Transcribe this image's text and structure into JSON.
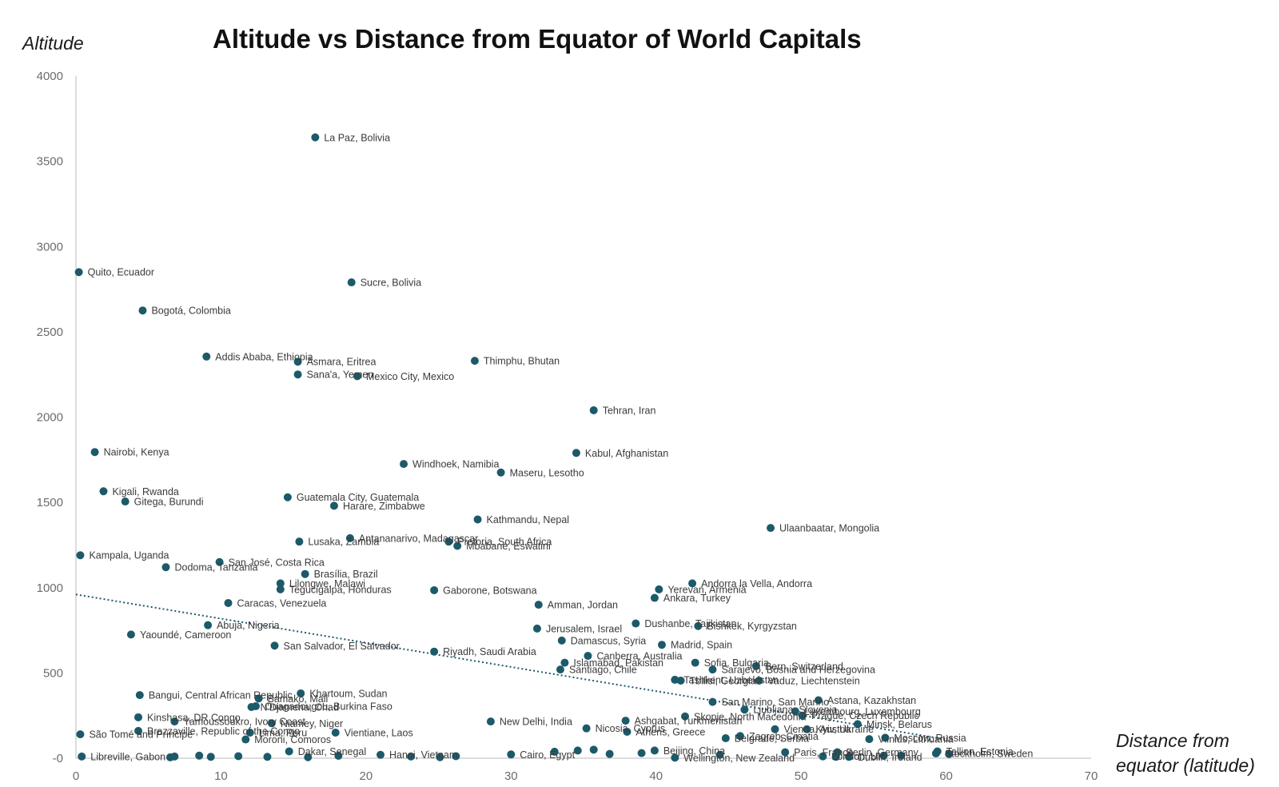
{
  "chart_data": {
    "type": "scatter",
    "title": "Altitude vs Distance from Equator of World Capitals",
    "ylabel": "Altitude",
    "xlabel_lines": [
      "Distance from",
      "equator (latitude)"
    ],
    "xlim": [
      0,
      70
    ],
    "ylim": [
      0,
      4000
    ],
    "x_ticks": [
      "0",
      "10",
      "20",
      "30",
      "40",
      "50",
      "60",
      "70"
    ],
    "y_ticks": [
      "-0",
      "500",
      "1000",
      "1500",
      "2000",
      "2500",
      "3000",
      "3500",
      "4000"
    ],
    "grid": false,
    "legend": "none",
    "marker_color": "#1c5a6a",
    "trendline": {
      "style": "dotted",
      "x": [
        0,
        60
      ],
      "y": [
        960,
        110
      ]
    },
    "points": [
      {
        "x": 16.5,
        "y": 3640,
        "label": "La Paz, Bolivia"
      },
      {
        "x": 0.2,
        "y": 2850,
        "label": "Quito, Ecuador"
      },
      {
        "x": 19.0,
        "y": 2790,
        "label": "Sucre, Bolivia"
      },
      {
        "x": 4.6,
        "y": 2625,
        "label": "Bogotá, Colombia"
      },
      {
        "x": 9.0,
        "y": 2355,
        "label": "Addis Ababa, Ethiopia"
      },
      {
        "x": 15.3,
        "y": 2325,
        "label": "Asmara, Eritrea"
      },
      {
        "x": 27.5,
        "y": 2330,
        "label": "Thimphu, Bhutan"
      },
      {
        "x": 15.3,
        "y": 2250,
        "label": "Sana'a, Yemen"
      },
      {
        "x": 19.4,
        "y": 2240,
        "label": "Mexico City, Mexico"
      },
      {
        "x": 35.7,
        "y": 2040,
        "label": "Tehran, Iran"
      },
      {
        "x": 1.3,
        "y": 1795,
        "label": "Nairobi, Kenya"
      },
      {
        "x": 34.5,
        "y": 1790,
        "label": "Kabul, Afghanistan"
      },
      {
        "x": 22.6,
        "y": 1725,
        "label": "Windhoek, Namibia"
      },
      {
        "x": 29.3,
        "y": 1675,
        "label": "Maseru, Lesotho"
      },
      {
        "x": 1.9,
        "y": 1565,
        "label": "Kigali, Rwanda"
      },
      {
        "x": 14.6,
        "y": 1530,
        "label": "Guatemala City, Guatemala"
      },
      {
        "x": 3.4,
        "y": 1505,
        "label": "Gitega, Burundi"
      },
      {
        "x": 17.8,
        "y": 1480,
        "label": "Harare, Zimbabwe"
      },
      {
        "x": 27.7,
        "y": 1400,
        "label": "Kathmandu, Nepal"
      },
      {
        "x": 47.9,
        "y": 1350,
        "label": "Ulaanbaatar, Mongolia"
      },
      {
        "x": 18.9,
        "y": 1290,
        "label": "Antananarivo, Madagascar"
      },
      {
        "x": 15.4,
        "y": 1270,
        "label": "Lusaka, Zambia"
      },
      {
        "x": 25.7,
        "y": 1270,
        "label": "Pretoria, South Africa"
      },
      {
        "x": 26.3,
        "y": 1245,
        "label": "Mbabane, Eswatini"
      },
      {
        "x": 0.3,
        "y": 1190,
        "label": "Kampala, Uganda"
      },
      {
        "x": 9.9,
        "y": 1150,
        "label": "San José, Costa Rica"
      },
      {
        "x": 6.2,
        "y": 1120,
        "label": "Dodoma, Tanzania"
      },
      {
        "x": 15.8,
        "y": 1080,
        "label": "Brasília, Brazil"
      },
      {
        "x": 42.5,
        "y": 1025,
        "label": "Andorra la Vella, Andorra"
      },
      {
        "x": 14.1,
        "y": 1025,
        "label": "Lilongwe, Malawi"
      },
      {
        "x": 40.2,
        "y": 990,
        "label": "Yerevan, Armenia"
      },
      {
        "x": 14.1,
        "y": 990,
        "label": "Tegucigalpa, Honduras"
      },
      {
        "x": 24.7,
        "y": 985,
        "label": "Gaborone, Botswana"
      },
      {
        "x": 39.9,
        "y": 940,
        "label": "Ankara, Turkey"
      },
      {
        "x": 10.5,
        "y": 910,
        "label": "Caracas, Venezuela"
      },
      {
        "x": 31.9,
        "y": 900,
        "label": "Amman, Jordan"
      },
      {
        "x": 38.6,
        "y": 790,
        "label": "Dushanbe, Tajikistan"
      },
      {
        "x": 9.1,
        "y": 780,
        "label": "Abuja, Nigeria"
      },
      {
        "x": 42.9,
        "y": 775,
        "label": "Bishkek, Kyrgyzstan"
      },
      {
        "x": 31.8,
        "y": 760,
        "label": "Jerusalem, Israel"
      },
      {
        "x": 3.8,
        "y": 725,
        "label": "Yaoundé, Cameroon"
      },
      {
        "x": 33.5,
        "y": 690,
        "label": "Damascus, Syria"
      },
      {
        "x": 40.4,
        "y": 665,
        "label": "Madrid, Spain"
      },
      {
        "x": 13.7,
        "y": 660,
        "label": "San Salvador, El Salvador"
      },
      {
        "x": 24.7,
        "y": 625,
        "label": "Riyadh, Saudi Arabia"
      },
      {
        "x": 35.3,
        "y": 600,
        "label": "Canberra, Australia"
      },
      {
        "x": 42.7,
        "y": 560,
        "label": "Sofia, Bulgaria"
      },
      {
        "x": 46.9,
        "y": 540,
        "label": "Bern, Switzerland"
      },
      {
        "x": 33.7,
        "y": 560,
        "label": "Islamabad, Pakistan"
      },
      {
        "x": 33.4,
        "y": 520,
        "label": "Santiago, Chile"
      },
      {
        "x": 43.9,
        "y": 520,
        "label": "Sarajevo, Bosnia and Herzegovina"
      },
      {
        "x": 47.1,
        "y": 455,
        "label": "Vaduz, Liechtenstein"
      },
      {
        "x": 41.3,
        "y": 460,
        "label": "Tashkent, Uzbekistan"
      },
      {
        "x": 41.7,
        "y": 455,
        "label": "Tbilisi, Georgia"
      },
      {
        "x": 4.4,
        "y": 370,
        "label": "Bangui, Central African Republic"
      },
      {
        "x": 15.5,
        "y": 380,
        "label": "Khartoum, Sudan"
      },
      {
        "x": 12.6,
        "y": 350,
        "label": "Bamako, Mali"
      },
      {
        "x": 12.1,
        "y": 300,
        "label": "N'Djamena, Chad"
      },
      {
        "x": 12.4,
        "y": 305,
        "label": "Ouagadougou, Burkina Faso"
      },
      {
        "x": 51.2,
        "y": 340,
        "label": "Astana, Kazakhstan"
      },
      {
        "x": 43.9,
        "y": 330,
        "label": "San Marino, San Marino"
      },
      {
        "x": 46.1,
        "y": 285,
        "label": "Ljubljana, Slovenia"
      },
      {
        "x": 49.6,
        "y": 275,
        "label": "Luxembourg, Luxembourg"
      },
      {
        "x": 42.0,
        "y": 245,
        "label": "Skopje, North Macedonia"
      },
      {
        "x": 50.1,
        "y": 250,
        "label": "Prague, Czech Republic"
      },
      {
        "x": 4.3,
        "y": 240,
        "label": "Kinshasa, DR Congo"
      },
      {
        "x": 6.8,
        "y": 215,
        "label": "Yamoussoukro, Ivory Coast"
      },
      {
        "x": 13.5,
        "y": 205,
        "label": "Niamey, Niger"
      },
      {
        "x": 28.6,
        "y": 215,
        "label": "New Delhi, India"
      },
      {
        "x": 37.9,
        "y": 220,
        "label": "Ashgabat, Turkmenistan"
      },
      {
        "x": 53.9,
        "y": 200,
        "label": "Minsk, Belarus"
      },
      {
        "x": 48.2,
        "y": 170,
        "label": "Vienna, Austria"
      },
      {
        "x": 50.4,
        "y": 170,
        "label": "Kyiv, Ukraine"
      },
      {
        "x": 35.2,
        "y": 175,
        "label": "Nicosia, Cyprus"
      },
      {
        "x": 4.3,
        "y": 160,
        "label": "Brazzaville, Republic of the Congo"
      },
      {
        "x": 12.0,
        "y": 150,
        "label": "Lima, Peru"
      },
      {
        "x": 17.9,
        "y": 150,
        "label": "Vientiane, Laos"
      },
      {
        "x": 38.0,
        "y": 155,
        "label": "Athens, Greece"
      },
      {
        "x": 0.3,
        "y": 140,
        "label": "São Tomé and Príncipe"
      },
      {
        "x": 45.8,
        "y": 130,
        "label": "Zagreb, Croatia"
      },
      {
        "x": 44.8,
        "y": 117,
        "label": "Belgrade, Serbia"
      },
      {
        "x": 54.7,
        "y": 112,
        "label": "Vilnius, Lithuania"
      },
      {
        "x": 55.8,
        "y": 120,
        "label": "Moscow, Russia"
      },
      {
        "x": 11.7,
        "y": 110,
        "label": "Moroni, Comoros"
      },
      {
        "x": 0.4,
        "y": 10,
        "label": "Libreville, Gabon"
      },
      {
        "x": 14.7,
        "y": 40,
        "label": "Dakar, Senegal"
      },
      {
        "x": 21.0,
        "y": 20,
        "label": "Hanoi, Vietnam"
      },
      {
        "x": 30.0,
        "y": 22,
        "label": "Cairo, Egypt"
      },
      {
        "x": 39.9,
        "y": 45,
        "label": "Beijing, China"
      },
      {
        "x": 48.9,
        "y": 35,
        "label": "Paris, France"
      },
      {
        "x": 52.5,
        "y": 35,
        "label": "Berlin, Germany"
      },
      {
        "x": 59.4,
        "y": 40,
        "label": "Tallinn, Estonia"
      },
      {
        "x": 51.5,
        "y": 11,
        "label": "London, UK"
      },
      {
        "x": 53.3,
        "y": 8,
        "label": "Dublin, Ireland"
      },
      {
        "x": 59.3,
        "y": 28,
        "label": "Stockholm, Sweden"
      },
      {
        "x": 41.3,
        "y": 3,
        "label": "Wellington, New Zealand"
      },
      {
        "x": 6.5,
        "y": 5,
        "label": ""
      },
      {
        "x": 6.8,
        "y": 10,
        "label": ""
      },
      {
        "x": 8.5,
        "y": 15,
        "label": ""
      },
      {
        "x": 9.3,
        "y": 8,
        "label": ""
      },
      {
        "x": 11.2,
        "y": 12,
        "label": ""
      },
      {
        "x": 13.2,
        "y": 8,
        "label": ""
      },
      {
        "x": 16.0,
        "y": 6,
        "label": ""
      },
      {
        "x": 18.1,
        "y": 14,
        "label": ""
      },
      {
        "x": 23.1,
        "y": 10,
        "label": ""
      },
      {
        "x": 25.1,
        "y": 6,
        "label": ""
      },
      {
        "x": 26.2,
        "y": 12,
        "label": ""
      },
      {
        "x": 33.0,
        "y": 38,
        "label": ""
      },
      {
        "x": 34.6,
        "y": 45,
        "label": ""
      },
      {
        "x": 35.7,
        "y": 50,
        "label": ""
      },
      {
        "x": 36.8,
        "y": 25,
        "label": ""
      },
      {
        "x": 39.0,
        "y": 30,
        "label": ""
      },
      {
        "x": 44.4,
        "y": 20,
        "label": ""
      },
      {
        "x": 52.4,
        "y": 8,
        "label": ""
      },
      {
        "x": 55.7,
        "y": 15,
        "label": ""
      },
      {
        "x": 60.2,
        "y": 25,
        "label": ""
      },
      {
        "x": 56.9,
        "y": 15,
        "label": ""
      }
    ]
  }
}
